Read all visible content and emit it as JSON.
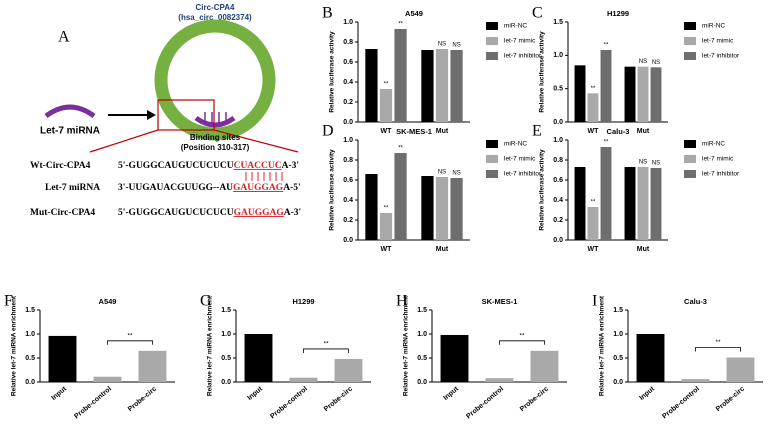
{
  "diagram": {
    "panel": "A",
    "circ_name": "Circ-CPA4",
    "circ_id": "(hsa_circ_0082374)",
    "mirna": "Let-7 miRNA",
    "binding": "Binding sites",
    "position": "(Position 310-317)",
    "rows": [
      {
        "label": "Wt-Circ-CPA4",
        "parts": [
          "5'-GUGGCAUGUCUCUCU",
          "CUACCUC",
          "A-3'"
        ]
      },
      {
        "label": "Let-7 miRNA",
        "parts": [
          "3'-UUGAUACGUUGG--AU",
          "GAUGGAG",
          "A-5'"
        ]
      },
      {
        "label": "Mut-Circ-CPA4",
        "parts": [
          "5'-GUGGCAUGUCUCUCU",
          "GAUGGAG",
          "A-3'"
        ]
      }
    ]
  },
  "chart_data": [
    {
      "type": "grouped",
      "panel": "B",
      "title": "A549",
      "ylabel": "Relative luciferase activity",
      "categories": [
        "WT",
        "Mut"
      ],
      "legend": "right",
      "ylim": [
        0,
        1.0
      ],
      "yticks": [
        {
          "value": 0,
          "label": "0.0"
        },
        0.2,
        0.4,
        0.6,
        0.8,
        {
          "value": 1.0,
          "label": "1.0"
        }
      ],
      "series": [
        {
          "name": "miR-NC",
          "color": "#000000",
          "values": [
            0.73,
            0.72
          ]
        },
        {
          "name": "let-7 mimic",
          "color": "#a9a9a9",
          "values": [
            0.33,
            0.73
          ],
          "significance": [
            "**",
            "NS"
          ]
        },
        {
          "name": "let-7 inhibitor",
          "color": "#6e6e6e",
          "values": [
            0.93,
            0.72
          ],
          "significance": [
            "**",
            "NS"
          ]
        }
      ]
    },
    {
      "type": "grouped",
      "panel": "C",
      "title": "H1299",
      "ylabel": "Relative luciferase activity",
      "categories": [
        "WT",
        "Mut"
      ],
      "legend": "right",
      "ylim": [
        0,
        1.5
      ],
      "yticks": [
        {
          "value": 0,
          "label": "0.0"
        },
        0.5,
        {
          "value": 1.0,
          "label": "1.0"
        },
        1.5
      ],
      "series": [
        {
          "name": "miR-NC",
          "color": "#000000",
          "values": [
            0.85,
            0.83
          ]
        },
        {
          "name": "let-7 mimic",
          "color": "#a9a9a9",
          "values": [
            0.43,
            0.83
          ],
          "significance": [
            "**",
            "NS"
          ]
        },
        {
          "name": "let-7 inhibitor",
          "color": "#6e6e6e",
          "values": [
            1.08,
            0.82
          ],
          "significance": [
            "**",
            "NS"
          ]
        }
      ]
    },
    {
      "type": "grouped",
      "panel": "D",
      "title": "SK-MES-1",
      "ylabel": "Relative luciferase activity",
      "categories": [
        "WT",
        "Mut"
      ],
      "legend": "right",
      "ylim": [
        0,
        1.0
      ],
      "yticks": [
        {
          "value": 0,
          "label": "0.0"
        },
        0.2,
        0.4,
        0.6,
        0.8,
        {
          "value": 1.0,
          "label": "1.0"
        }
      ],
      "series": [
        {
          "name": "miR-NC",
          "color": "#000000",
          "values": [
            0.66,
            0.64
          ]
        },
        {
          "name": "let-7 mimic",
          "color": "#a9a9a9",
          "values": [
            0.27,
            0.63
          ],
          "significance": [
            "**",
            "NS"
          ]
        },
        {
          "name": "let-7 inhibitor",
          "color": "#6e6e6e",
          "values": [
            0.87,
            0.62
          ],
          "significance": [
            "**",
            "NS"
          ]
        }
      ]
    },
    {
      "type": "grouped",
      "panel": "E",
      "title": "Calu-3",
      "ylabel": "Relative luciferase activity",
      "categories": [
        "WT",
        "Mut"
      ],
      "legend": "right",
      "ylim": [
        0,
        1.0
      ],
      "yticks": [
        {
          "value": 0,
          "label": "0.0"
        },
        0.2,
        0.4,
        0.6,
        0.8,
        {
          "value": 1.0,
          "label": "1.0"
        }
      ],
      "series": [
        {
          "name": "miR-NC",
          "color": "#000000",
          "values": [
            0.73,
            0.73
          ]
        },
        {
          "name": "let-7 mimic",
          "color": "#a9a9a9",
          "values": [
            0.33,
            0.73
          ],
          "significance": [
            "**",
            "NS"
          ]
        },
        {
          "name": "let-7 inhibitor",
          "color": "#6e6e6e",
          "values": [
            0.93,
            0.72
          ],
          "significance": [
            "**",
            "NS"
          ]
        }
      ]
    },
    {
      "type": "bar",
      "panel": "F",
      "title": "A549",
      "ylabel": "Relative let-7 miRNA enrichment",
      "categories": [
        "Input",
        "Probe-control",
        "Probe-circ"
      ],
      "values": [
        0.96,
        0.11,
        0.65
      ],
      "colors": [
        "#000000",
        "#a9a9a9",
        "#a9a9a9"
      ],
      "annotation": "**",
      "ylim": [
        0,
        1.5
      ],
      "yticks": [
        {
          "value": 0,
          "label": "0.0"
        },
        0.5,
        {
          "value": 1.0,
          "label": "1.0"
        },
        1.5
      ]
    },
    {
      "type": "bar",
      "panel": "G",
      "title": "H1299",
      "ylabel": "Relative let-7 miRNA enrichment",
      "categories": [
        "Input",
        "Probe-control",
        "Probe-circ"
      ],
      "values": [
        1.0,
        0.09,
        0.48
      ],
      "colors": [
        "#000000",
        "#a9a9a9",
        "#a9a9a9"
      ],
      "annotation": "**",
      "ylim": [
        0,
        1.5
      ],
      "yticks": [
        {
          "value": 0,
          "label": "0.0"
        },
        0.5,
        {
          "value": 1.0,
          "label": "1.0"
        },
        1.5
      ]
    },
    {
      "type": "bar",
      "panel": "H",
      "title": "SK-MES-1",
      "ylabel": "Relative let-7 miRNA enrichment",
      "categories": [
        "Input",
        "Probe-control",
        "Probe-circ"
      ],
      "values": [
        0.98,
        0.08,
        0.65
      ],
      "colors": [
        "#000000",
        "#a9a9a9",
        "#a9a9a9"
      ],
      "annotation": "**",
      "ylim": [
        0,
        1.5
      ],
      "yticks": [
        {
          "value": 0,
          "label": "0.0"
        },
        0.5,
        {
          "value": 1.0,
          "label": "1.0"
        },
        1.5
      ]
    },
    {
      "type": "bar",
      "panel": "I",
      "title": "Calu-3",
      "ylabel": "Relative let-7 miRNA enrichment",
      "categories": [
        "Input",
        "Probe-control",
        "Probe-circ"
      ],
      "values": [
        1.0,
        0.06,
        0.51
      ],
      "colors": [
        "#000000",
        "#a9a9a9",
        "#a9a9a9"
      ],
      "annotation": "**",
      "ylim": [
        0,
        1.5
      ],
      "yticks": [
        {
          "value": 0,
          "label": "0.0"
        },
        0.5,
        {
          "value": 1.0,
          "label": "1.0"
        },
        1.5
      ]
    }
  ]
}
